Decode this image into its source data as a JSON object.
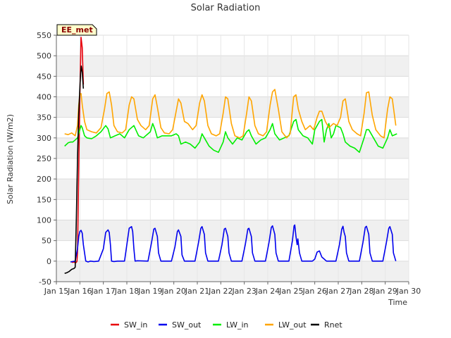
{
  "chart_data": {
    "type": "line",
    "title": "Solar Radiation",
    "xlabel": "Time",
    "ylabel": "Solar Radiation (W/m2)",
    "site_tag": "EE_met",
    "xlim": [
      15,
      30
    ],
    "ylim": [
      -50,
      550
    ],
    "x_ticks": [
      {
        "value": 15,
        "label": "Jan 15"
      },
      {
        "value": 16,
        "label": "Jan 16"
      },
      {
        "value": 17,
        "label": "Jan 17"
      },
      {
        "value": 18,
        "label": "Jan 18"
      },
      {
        "value": 19,
        "label": "Jan 19"
      },
      {
        "value": 20,
        "label": "Jan 20"
      },
      {
        "value": 21,
        "label": "Jan 21"
      },
      {
        "value": 22,
        "label": "Jan 22"
      },
      {
        "value": 23,
        "label": "Jan 23"
      },
      {
        "value": 24,
        "label": "Jan 24"
      },
      {
        "value": 25,
        "label": "Jan 25"
      },
      {
        "value": 26,
        "label": "Jan 26"
      },
      {
        "value": 27,
        "label": "Jan 27"
      },
      {
        "value": 28,
        "label": "Jan 28"
      },
      {
        "value": 29,
        "label": "Jan 29"
      },
      {
        "value": 30,
        "label": "Jan 30"
      }
    ],
    "y_ticks": [
      -50,
      0,
      50,
      100,
      150,
      200,
      250,
      300,
      350,
      400,
      450,
      500,
      550
    ],
    "grid": true,
    "legend_position": "bottom",
    "series": [
      {
        "name": "SW_in",
        "color": "#e8000b",
        "x": [
          15.65,
          15.7,
          15.75,
          15.8,
          15.85,
          15.88,
          15.9,
          15.95,
          16.0,
          16.05,
          16.1,
          16.15
        ],
        "y": [
          -2,
          -3,
          -2,
          -4,
          -3,
          0,
          20,
          220,
          400,
          545,
          520,
          430
        ]
      },
      {
        "name": "SW_out",
        "color": "#0000ee",
        "x": [
          15.6,
          15.8,
          15.9,
          15.95,
          16.0,
          16.05,
          16.1,
          16.15,
          16.25,
          16.35,
          16.45,
          16.6,
          16.8,
          17.0,
          17.1,
          17.2,
          17.25,
          17.3,
          17.35,
          17.45,
          17.6,
          17.9,
          18.0,
          18.1,
          18.2,
          18.25,
          18.3,
          18.35,
          18.45,
          18.9,
          19.05,
          19.15,
          19.2,
          19.3,
          19.35,
          19.45,
          19.9,
          20.05,
          20.15,
          20.2,
          20.3,
          20.35,
          20.45,
          20.9,
          21.05,
          21.15,
          21.2,
          21.3,
          21.35,
          21.45,
          21.9,
          22.05,
          22.15,
          22.2,
          22.3,
          22.35,
          22.45,
          22.9,
          23.05,
          23.15,
          23.2,
          23.3,
          23.35,
          23.45,
          23.9,
          24.05,
          24.15,
          24.2,
          24.3,
          24.35,
          24.45,
          24.9,
          25.05,
          25.12,
          25.15,
          25.2,
          25.25,
          25.28,
          25.3,
          25.35,
          25.45,
          25.9,
          26.0,
          26.1,
          26.2,
          26.3,
          26.4,
          26.5,
          26.6,
          26.9,
          27.05,
          27.15,
          27.2,
          27.25,
          27.3,
          27.35,
          27.45,
          27.9,
          28.05,
          28.15,
          28.2,
          28.3,
          28.35,
          28.45,
          28.9,
          29.05,
          29.15,
          29.2,
          29.3,
          29.35,
          29.45
        ],
        "y": [
          -2,
          0,
          30,
          60,
          72,
          75,
          68,
          40,
          0,
          -2,
          0,
          -1,
          0,
          30,
          70,
          76,
          70,
          40,
          0,
          -1,
          0,
          0,
          40,
          80,
          84,
          72,
          30,
          0,
          1,
          0,
          45,
          78,
          80,
          60,
          20,
          0,
          0,
          35,
          72,
          76,
          60,
          15,
          0,
          0,
          45,
          80,
          84,
          65,
          20,
          0,
          0,
          40,
          78,
          80,
          60,
          20,
          0,
          0,
          42,
          78,
          80,
          60,
          20,
          0,
          0,
          45,
          82,
          86,
          65,
          20,
          0,
          0,
          50,
          86,
          88,
          60,
          40,
          54,
          45,
          20,
          0,
          0,
          5,
          22,
          25,
          10,
          5,
          0,
          0,
          0,
          40,
          78,
          85,
          70,
          60,
          20,
          0,
          0,
          45,
          82,
          85,
          65,
          20,
          0,
          0,
          45,
          80,
          84,
          65,
          20,
          0
        ]
      },
      {
        "name": "LW_in",
        "color": "#00ee00",
        "x": [
          15.35,
          15.5,
          15.6,
          15.7,
          15.8,
          15.9,
          16.0,
          16.05,
          16.1,
          16.2,
          16.3,
          16.5,
          16.7,
          16.9,
          17.1,
          17.2,
          17.3,
          17.5,
          17.7,
          17.9,
          18.1,
          18.3,
          18.5,
          18.7,
          18.9,
          19.0,
          19.1,
          19.2,
          19.3,
          19.5,
          19.7,
          19.9,
          20.1,
          20.2,
          20.3,
          20.5,
          20.7,
          20.9,
          21.1,
          21.2,
          21.3,
          21.5,
          21.7,
          21.9,
          22.1,
          22.2,
          22.3,
          22.5,
          22.7,
          22.9,
          23.1,
          23.2,
          23.3,
          23.5,
          23.7,
          23.9,
          24.1,
          24.2,
          24.3,
          24.5,
          24.7,
          24.9,
          25.1,
          25.2,
          25.3,
          25.5,
          25.7,
          25.9,
          26.0,
          26.1,
          26.2,
          26.3,
          26.4,
          26.5,
          26.6,
          26.7,
          26.8,
          26.9,
          27.1,
          27.2,
          27.3,
          27.5,
          27.7,
          27.9,
          28.1,
          28.2,
          28.3,
          28.5,
          28.7,
          28.9,
          29.1,
          29.2,
          29.3,
          29.5
        ],
        "y": [
          280,
          288,
          290,
          290,
          295,
          300,
          320,
          330,
          325,
          305,
          300,
          298,
          305,
          315,
          330,
          322,
          300,
          305,
          310,
          300,
          320,
          330,
          305,
          300,
          310,
          315,
          335,
          320,
          300,
          305,
          305,
          305,
          310,
          305,
          285,
          290,
          285,
          275,
          290,
          310,
          300,
          280,
          270,
          265,
          290,
          315,
          300,
          285,
          300,
          295,
          315,
          320,
          305,
          285,
          295,
          300,
          320,
          335,
          310,
          295,
          300,
          305,
          340,
          345,
          320,
          305,
          300,
          285,
          320,
          330,
          340,
          345,
          290,
          320,
          335,
          300,
          310,
          330,
          325,
          310,
          290,
          280,
          275,
          265,
          300,
          320,
          320,
          300,
          280,
          275,
          300,
          320,
          305,
          310
        ]
      },
      {
        "name": "LW_out",
        "color": "#ffa500",
        "x": [
          15.35,
          15.5,
          15.65,
          15.8,
          15.9,
          15.95,
          16.0,
          16.05,
          16.1,
          16.2,
          16.3,
          16.5,
          16.7,
          16.9,
          17.05,
          17.15,
          17.25,
          17.35,
          17.45,
          17.6,
          17.8,
          17.95,
          18.1,
          18.2,
          18.3,
          18.45,
          18.6,
          18.8,
          18.95,
          19.1,
          19.2,
          19.3,
          19.45,
          19.6,
          19.8,
          19.95,
          20.1,
          20.2,
          20.3,
          20.45,
          20.6,
          20.8,
          20.95,
          21.1,
          21.2,
          21.3,
          21.45,
          21.6,
          21.8,
          21.95,
          22.1,
          22.2,
          22.3,
          22.45,
          22.6,
          22.8,
          22.95,
          23.1,
          23.2,
          23.3,
          23.45,
          23.6,
          23.8,
          23.95,
          24.1,
          24.2,
          24.3,
          24.45,
          24.6,
          24.8,
          24.95,
          25.1,
          25.2,
          25.3,
          25.45,
          25.6,
          25.8,
          25.95,
          26.1,
          26.2,
          26.3,
          26.45,
          26.6,
          26.8,
          26.95,
          27.1,
          27.2,
          27.3,
          27.45,
          27.6,
          27.8,
          27.95,
          28.1,
          28.2,
          28.3,
          28.45,
          28.6,
          28.8,
          28.95,
          29.1,
          29.2,
          29.3,
          29.45
        ],
        "y": [
          310,
          308,
          312,
          305,
          330,
          380,
          405,
          408,
          380,
          340,
          320,
          315,
          312,
          325,
          370,
          408,
          412,
          380,
          330,
          315,
          312,
          320,
          380,
          400,
          395,
          345,
          330,
          320,
          330,
          395,
          405,
          375,
          325,
          312,
          310,
          320,
          365,
          395,
          385,
          340,
          335,
          320,
          330,
          385,
          405,
          390,
          330,
          310,
          305,
          310,
          360,
          400,
          395,
          335,
          305,
          300,
          305,
          360,
          400,
          390,
          330,
          310,
          305,
          315,
          380,
          412,
          418,
          370,
          315,
          300,
          310,
          400,
          405,
          370,
          340,
          320,
          330,
          320,
          350,
          365,
          365,
          340,
          325,
          335,
          330,
          350,
          390,
          395,
          340,
          320,
          310,
          305,
          360,
          410,
          412,
          355,
          320,
          305,
          300,
          370,
          400,
          395,
          330
        ]
      },
      {
        "name": "Rnet",
        "color": "#000000",
        "x": [
          15.35,
          15.45,
          15.55,
          15.65,
          15.75,
          15.8,
          15.85,
          15.9,
          15.95,
          16.0,
          16.03,
          16.06,
          16.1,
          16.15
        ],
        "y": [
          -30,
          -28,
          -25,
          -20,
          -18,
          -15,
          100,
          250,
          360,
          420,
          455,
          475,
          460,
          420
        ]
      }
    ]
  }
}
